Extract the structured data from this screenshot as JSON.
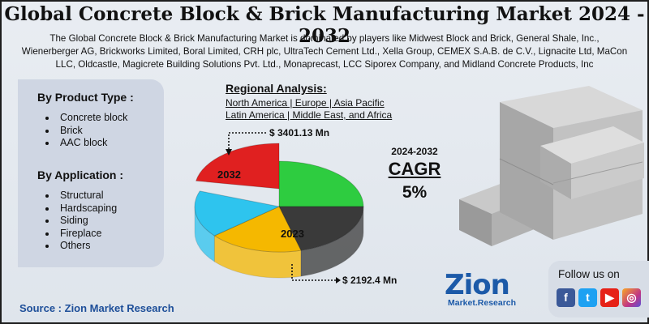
{
  "title": "Global Concrete Block & Brick Manufacturing Market 2024 - 2032",
  "description": [
    "The Global Concrete Block & Brick Manufacturing Market is dominated by players like Midwest Block and Brick, General Shale, Inc.,",
    "Wienerberger AG, Brickworks Limited, Boral Limited, CRH plc, UltraTech Cement Ltd., Xella Group, CEMEX S.A.B. de C.V., Lignacite Ltd, MaCon",
    "LLC, Oldcastle, Magicrete Building Solutions Pvt. Ltd., Monaprecast, LCC Siporex Company, and Midland Concrete Products, Inc"
  ],
  "segments": {
    "product_heading": "By Product Type :",
    "product_items": [
      "Concrete block",
      "Brick",
      "AAC block"
    ],
    "application_heading": "By Application :",
    "application_items": [
      "Structural",
      "Hardscaping",
      "Siding",
      "Fireplace",
      "Others"
    ]
  },
  "regional": {
    "heading": "Regional Analysis:",
    "line1": "North America | Europe | Asia Pacific",
    "line2": "Latin America | Middle East, and Africa"
  },
  "cagr": {
    "period": "2024-2032",
    "label": "CAGR",
    "value": "5%"
  },
  "chart_data": {
    "type": "pie",
    "labels": [
      "2032",
      "2023"
    ],
    "values": [
      3401.13,
      2192.4
    ],
    "value_labels": [
      "$ 3401.13 Mn",
      "$ 2192.4 Mn"
    ],
    "unit": "Mn"
  },
  "colors": {
    "red": "#e02020",
    "green": "#2ecc40",
    "dark": "#3a3a3a",
    "yellow": "#f5b800",
    "cyan": "#2ec4ee",
    "facebook": "#3b5998",
    "twitter": "#1da1f2",
    "youtube": "#e62117",
    "instagram": "#c13584"
  },
  "follow": {
    "text": "Follow us on",
    "icons": [
      "facebook-icon",
      "twitter-icon",
      "youtube-icon",
      "instagram-icon"
    ]
  },
  "logo": {
    "main": "Zion",
    "sub": "Market.Research"
  },
  "source": "Source : Zion Market Research"
}
